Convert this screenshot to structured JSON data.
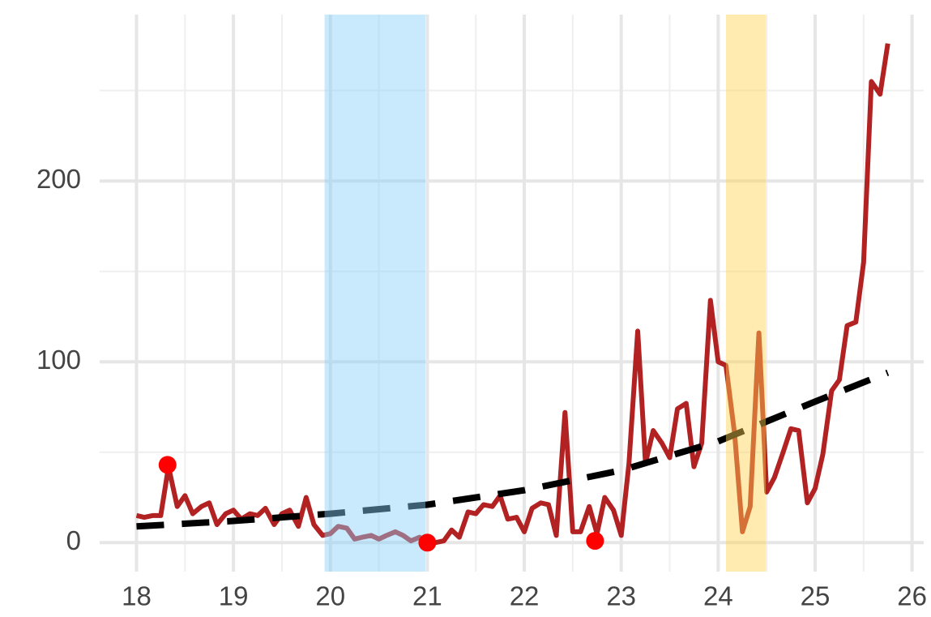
{
  "chart_data": {
    "type": "line",
    "x": [
      18.0,
      18.08,
      18.17,
      18.25,
      18.33,
      18.42,
      18.5,
      18.58,
      18.67,
      18.75,
      18.83,
      18.92,
      19.0,
      19.08,
      19.17,
      19.25,
      19.33,
      19.42,
      19.5,
      19.58,
      19.67,
      19.75,
      19.83,
      19.92,
      20.0,
      20.08,
      20.17,
      20.25,
      20.33,
      20.42,
      20.5,
      20.58,
      20.67,
      20.75,
      20.83,
      20.92,
      21.0,
      21.08,
      21.17,
      21.25,
      21.33,
      21.42,
      21.5,
      21.58,
      21.67,
      21.75,
      21.83,
      21.92,
      22.0,
      22.08,
      22.17,
      22.25,
      22.33,
      22.42,
      22.5,
      22.58,
      22.67,
      22.75,
      22.83,
      22.92,
      23.0,
      23.08,
      23.17,
      23.25,
      23.33,
      23.42,
      23.5,
      23.58,
      23.67,
      23.75,
      23.83,
      23.92,
      24.0,
      24.08,
      24.17,
      24.25,
      24.33,
      24.42,
      24.5,
      24.58,
      24.67,
      24.75,
      24.83,
      24.92,
      25.0,
      25.08,
      25.17,
      25.25,
      25.33,
      25.42,
      25.5,
      25.58,
      25.67,
      25.75
    ],
    "series": [
      {
        "color": "#b22222",
        "values": [
          15,
          14,
          15,
          15,
          42,
          20,
          26,
          16,
          20,
          22,
          10,
          16,
          18,
          13,
          16,
          15,
          19,
          10,
          16,
          18,
          9,
          25,
          10,
          4,
          5,
          9,
          8,
          2,
          3,
          4,
          2,
          4,
          6,
          4,
          1,
          3,
          0,
          0,
          1,
          7,
          3,
          17,
          16,
          21,
          20,
          26,
          13,
          14,
          6,
          19,
          22,
          21,
          4,
          72,
          6,
          6,
          20,
          5,
          25,
          18,
          4,
          44,
          117,
          44,
          62,
          55,
          47,
          74,
          77,
          42,
          55,
          134,
          100,
          98,
          60,
          6,
          20,
          116,
          28,
          36,
          50,
          63,
          62,
          22,
          30,
          49,
          84,
          90,
          120,
          122,
          155,
          255,
          248,
          276
        ]
      }
    ],
    "trend": {
      "color": "#000000",
      "x": [
        18,
        19,
        20,
        21,
        22,
        23,
        24,
        25,
        25.75
      ],
      "values": [
        9,
        12,
        16,
        21,
        29,
        40,
        56,
        78,
        94
      ]
    },
    "highlights": {
      "color": "#ff0000",
      "x": [
        18.32,
        21.0,
        22.73
      ],
      "values": [
        43,
        0,
        1
      ]
    },
    "bands": [
      {
        "x": [
          19.94,
          20.98
        ],
        "color": "rgba(135,206,250,0.45)"
      },
      {
        "x": [
          24.08,
          24.49
        ],
        "color": "rgba(255,210,80,0.45)"
      }
    ],
    "xlim": [
      17.62,
      26.12
    ],
    "ylim": [
      -16,
      292
    ],
    "xticks": [
      18,
      19,
      20,
      21,
      22,
      23,
      24,
      25,
      26
    ],
    "yticks": [
      0,
      100,
      200
    ],
    "xminor": [
      18.5,
      19.5,
      20.5,
      21.5,
      22.5,
      23.5,
      24.5,
      25.5
    ],
    "yminor": [
      50,
      150,
      250
    ],
    "grid": true
  }
}
